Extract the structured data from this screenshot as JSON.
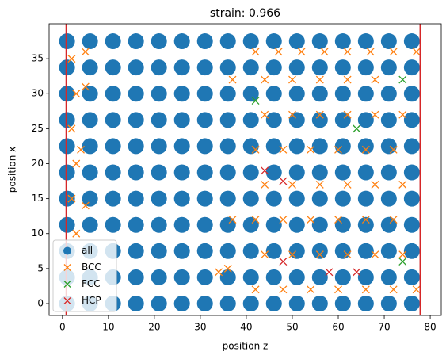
{
  "chart_data": {
    "type": "scatter",
    "title": "strain: 0.966",
    "x_label": "position z",
    "y_label": "position x",
    "xlim": [
      -2.9,
      82.4
    ],
    "ylim": [
      -1.7,
      40
    ],
    "xticks": [
      0,
      10,
      20,
      30,
      40,
      50,
      60,
      70,
      80
    ],
    "yticks": [
      0,
      5,
      10,
      15,
      20,
      25,
      30,
      35
    ],
    "legend": "lower left",
    "vlines": [
      0.8,
      77.8
    ],
    "vline_color": "#d62728",
    "series": [
      {
        "name": "all",
        "color": "#1f77b4",
        "marker": "o",
        "x": [
          1,
          6,
          11,
          16,
          21,
          26,
          31,
          36,
          41,
          46,
          51,
          56,
          61,
          66,
          71,
          76,
          1,
          6,
          11,
          16,
          21,
          26,
          31,
          36,
          41,
          46,
          51,
          56,
          61,
          66,
          71,
          76,
          1,
          6,
          11,
          16,
          21,
          26,
          31,
          36,
          41,
          46,
          51,
          56,
          61,
          66,
          71,
          76,
          1,
          6,
          11,
          16,
          21,
          26,
          31,
          36,
          41,
          46,
          51,
          56,
          61,
          66,
          71,
          76,
          1,
          6,
          11,
          16,
          21,
          26,
          31,
          36,
          41,
          46,
          51,
          56,
          61,
          66,
          71,
          76,
          1,
          6,
          11,
          16,
          21,
          26,
          31,
          36,
          41,
          46,
          51,
          56,
          61,
          66,
          71,
          76,
          1,
          6,
          11,
          16,
          21,
          26,
          31,
          36,
          41,
          46,
          51,
          56,
          61,
          66,
          71,
          76,
          1,
          6,
          11,
          16,
          21,
          26,
          31,
          36,
          41,
          46,
          51,
          56,
          61,
          66,
          71,
          76,
          1,
          6,
          11,
          16,
          21,
          26,
          31,
          36,
          41,
          46,
          51,
          56,
          61,
          66,
          71,
          76,
          1,
          6,
          11,
          16,
          21,
          26,
          31,
          36,
          41,
          46,
          51,
          56,
          61,
          66,
          71,
          76,
          1,
          6,
          11,
          16,
          21,
          26,
          31,
          36,
          41,
          46,
          51,
          56,
          61,
          66,
          71,
          76
        ],
        "y": [
          0,
          0,
          0,
          0,
          0,
          0,
          0,
          0,
          0,
          0,
          0,
          0,
          0,
          0,
          0,
          0,
          3.75,
          3.75,
          3.75,
          3.75,
          3.75,
          3.75,
          3.75,
          3.75,
          3.75,
          3.75,
          3.75,
          3.75,
          3.75,
          3.75,
          3.75,
          3.75,
          7.5,
          7.5,
          7.5,
          7.5,
          7.5,
          7.5,
          7.5,
          7.5,
          7.5,
          7.5,
          7.5,
          7.5,
          7.5,
          7.5,
          7.5,
          7.5,
          11.25,
          11.25,
          11.25,
          11.25,
          11.25,
          11.25,
          11.25,
          11.25,
          11.25,
          11.25,
          11.25,
          11.25,
          11.25,
          11.25,
          11.25,
          11.25,
          15,
          15,
          15,
          15,
          15,
          15,
          15,
          15,
          15,
          15,
          15,
          15,
          15,
          15,
          15,
          15,
          18.75,
          18.75,
          18.75,
          18.75,
          18.75,
          18.75,
          18.75,
          18.75,
          18.75,
          18.75,
          18.75,
          18.75,
          18.75,
          18.75,
          18.75,
          18.75,
          22.5,
          22.5,
          22.5,
          22.5,
          22.5,
          22.5,
          22.5,
          22.5,
          22.5,
          22.5,
          22.5,
          22.5,
          22.5,
          22.5,
          22.5,
          22.5,
          26.25,
          26.25,
          26.25,
          26.25,
          26.25,
          26.25,
          26.25,
          26.25,
          26.25,
          26.25,
          26.25,
          26.25,
          26.25,
          26.25,
          26.25,
          26.25,
          30,
          30,
          30,
          30,
          30,
          30,
          30,
          30,
          30,
          30,
          30,
          30,
          30,
          30,
          30,
          30,
          33.75,
          33.75,
          33.75,
          33.75,
          33.75,
          33.75,
          33.75,
          33.75,
          33.75,
          33.75,
          33.75,
          33.75,
          33.75,
          33.75,
          33.75,
          33.75,
          37.5,
          37.5,
          37.5,
          37.5,
          37.5,
          37.5,
          37.5,
          37.5,
          37.5,
          37.5,
          37.5,
          37.5,
          37.5,
          37.5,
          37.5,
          37.5
        ]
      },
      {
        "name": "BCC",
        "color": "#ff7f0e",
        "marker": "x",
        "x": [
          42,
          47,
          52,
          57,
          62,
          67,
          72,
          77,
          44,
          50,
          56,
          62,
          68,
          44,
          50,
          56,
          62,
          68,
          74,
          42,
          48,
          54,
          60,
          66,
          72,
          44,
          50,
          56,
          62,
          68,
          74,
          42,
          48,
          54,
          60,
          66,
          72,
          44,
          50,
          56,
          62,
          68,
          74,
          42,
          48,
          54,
          60,
          66,
          72,
          77,
          2,
          3,
          2,
          3,
          2,
          3,
          5,
          5,
          4,
          5,
          37,
          36,
          34,
          37
        ],
        "y": [
          36,
          36,
          36,
          36,
          36,
          36,
          36,
          36,
          32,
          32,
          32,
          32,
          32,
          27,
          27,
          27,
          27,
          27,
          27,
          22,
          22,
          22,
          22,
          22,
          22,
          17,
          17,
          17,
          17,
          17,
          17,
          12,
          12,
          12,
          12,
          12,
          12,
          7,
          7,
          7,
          7,
          7,
          7,
          2,
          2,
          2,
          2,
          2,
          2,
          2,
          35,
          30,
          25,
          20,
          15,
          10,
          36,
          31,
          22,
          14,
          12,
          5,
          4.5,
          32
        ]
      },
      {
        "name": "FCC",
        "color": "#2ca02c",
        "marker": "x",
        "x": [
          74,
          74,
          64,
          42
        ],
        "y": [
          32,
          6,
          25,
          29
        ]
      },
      {
        "name": "HCP",
        "color": "#d62728",
        "marker": "x",
        "x": [
          48,
          48,
          64,
          58,
          44
        ],
        "y": [
          17.5,
          6,
          4.5,
          4.5,
          19
        ]
      }
    ]
  }
}
